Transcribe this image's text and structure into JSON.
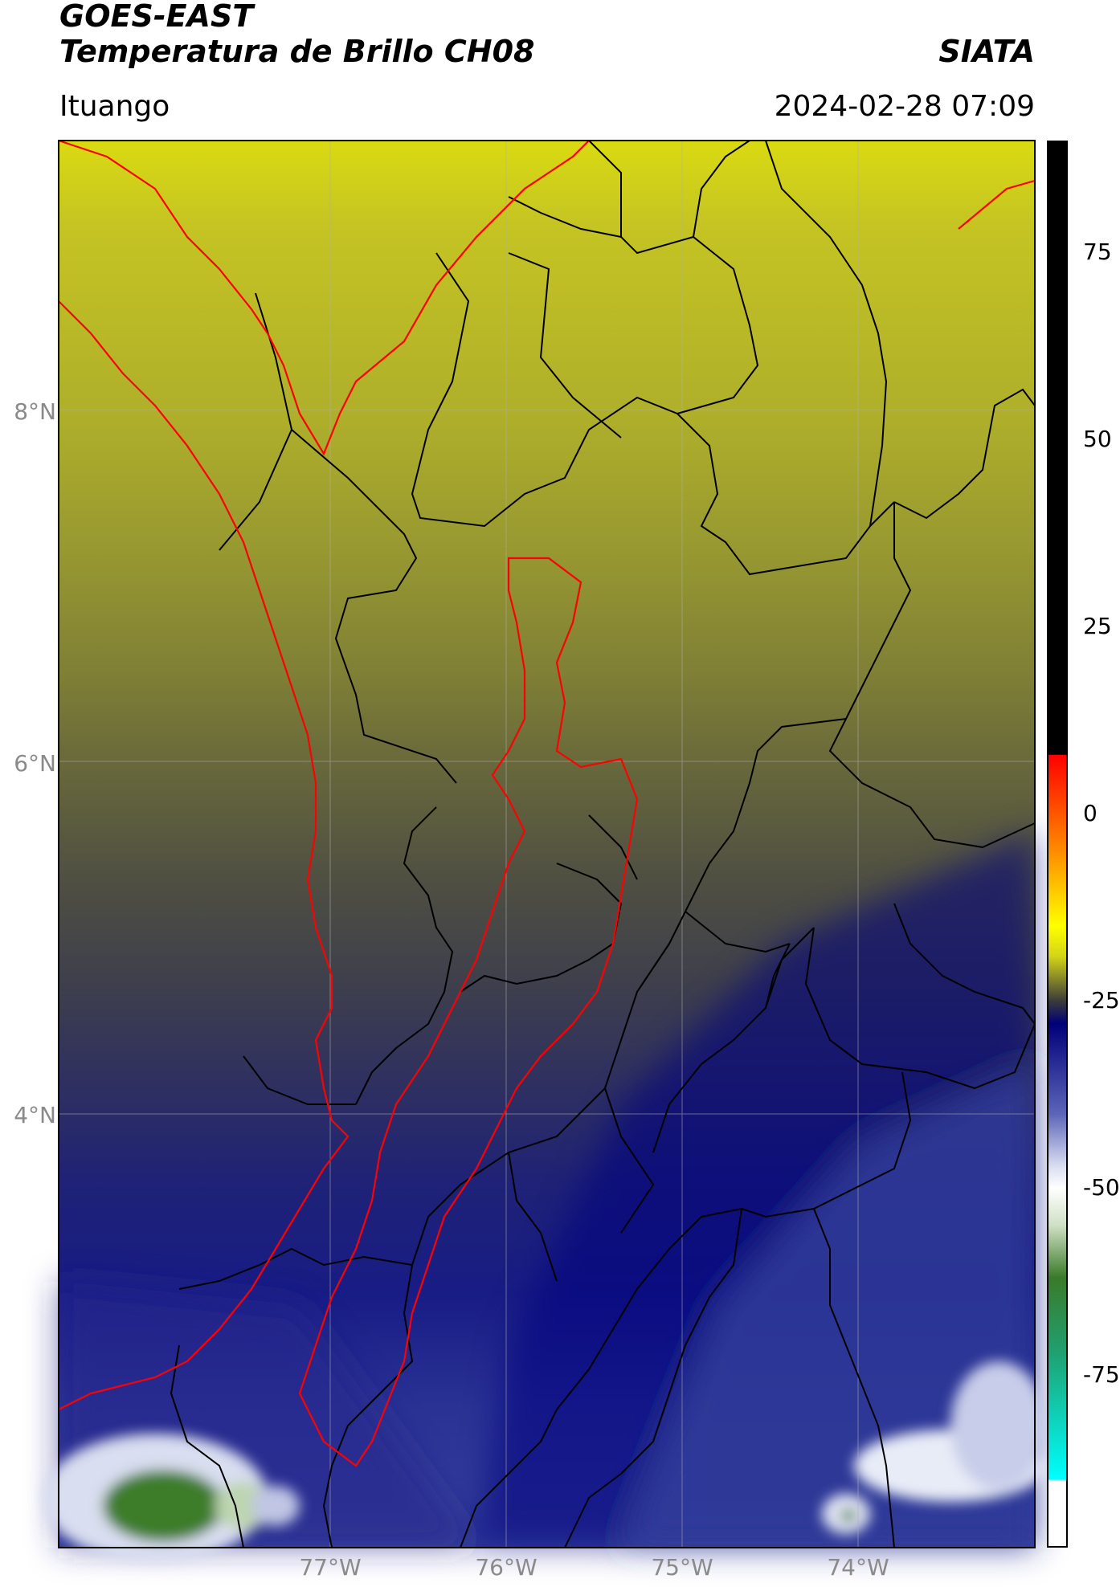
{
  "header": {
    "title_line1": "GOES-EAST",
    "title_line2": "Temperatura de Brillo CH08",
    "organization": "SIATA",
    "location": "Ituango",
    "datetime": "2024-02-28 07:09"
  },
  "map": {
    "lat_labels": [
      "8°N",
      "6°N",
      "4°N"
    ],
    "lon_labels": [
      "77°W",
      "76°W",
      "75°W",
      "74°W"
    ],
    "border_colors": {
      "highlight": "#ff0000",
      "admin": "#000000"
    }
  },
  "colorbar": {
    "ticks": [
      "75",
      "50",
      "25",
      "0",
      "-25",
      "-50",
      "-75"
    ],
    "stops": [
      {
        "value": 90,
        "color": "#000000"
      },
      {
        "value": 8,
        "color": "#000000"
      },
      {
        "value": 7.9,
        "color": "#ff0000"
      },
      {
        "value": -5,
        "color": "#ff8c00"
      },
      {
        "value": -15,
        "color": "#ffff00"
      },
      {
        "value": -19,
        "color": "#d4d418"
      },
      {
        "value": -25,
        "color": "#3a3a3a"
      },
      {
        "value": -28,
        "color": "#00007a"
      },
      {
        "value": -40,
        "color": "#5a64b8"
      },
      {
        "value": -47,
        "color": "#d8dcf0"
      },
      {
        "value": -50,
        "color": "#ffffff"
      },
      {
        "value": -55,
        "color": "#cfe0c4"
      },
      {
        "value": -62,
        "color": "#3a7a2a"
      },
      {
        "value": -72,
        "color": "#20a070"
      },
      {
        "value": -89,
        "color": "#00ffff"
      },
      {
        "value": -89.1,
        "color": "#ffffff"
      },
      {
        "value": -98,
        "color": "#ffffff"
      }
    ]
  }
}
